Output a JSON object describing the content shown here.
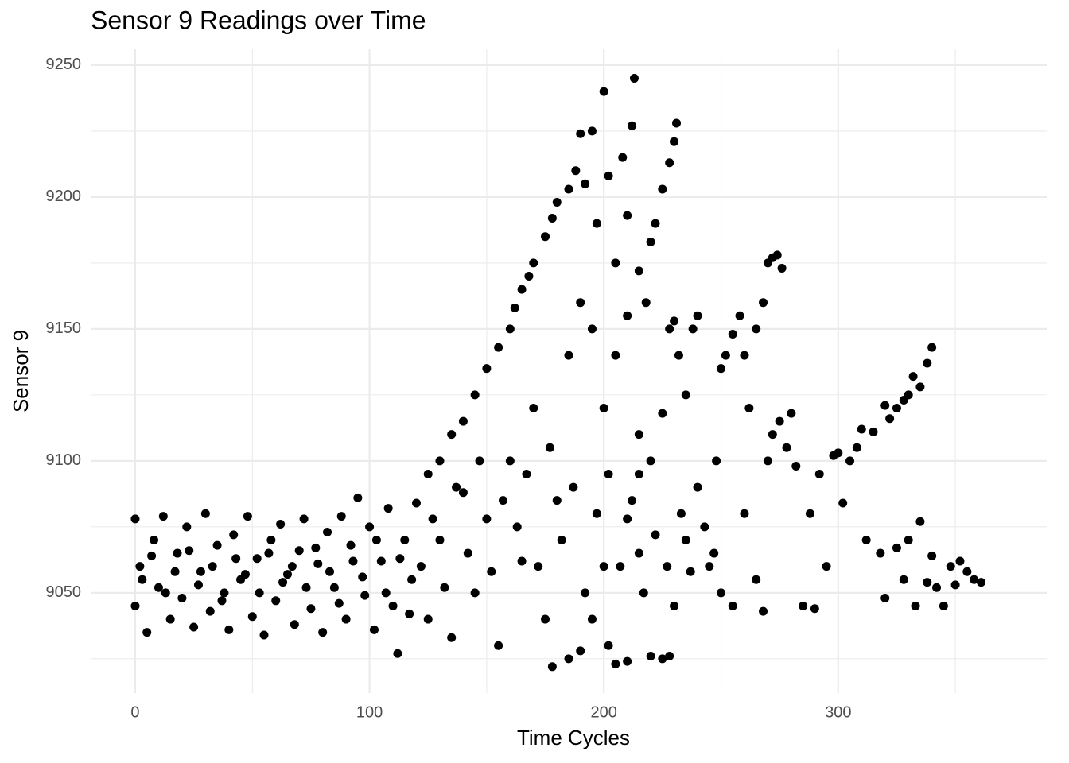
{
  "chart_data": {
    "type": "scatter",
    "title": "Sensor 9 Readings over Time",
    "x_label": "Time Cycles",
    "y_label": "Sensor 9",
    "color": "#000000",
    "grid": true,
    "xlim": [
      -19,
      389
    ],
    "ylim": [
      9012,
      9256
    ],
    "xticks": [
      0,
      100,
      200,
      300
    ],
    "yticks": [
      9050,
      9100,
      9150,
      9200,
      9250
    ],
    "x": [
      0,
      0,
      2,
      5,
      8,
      10,
      12,
      15,
      18,
      20,
      22,
      25,
      28,
      30,
      32,
      35,
      38,
      40,
      42,
      45,
      48,
      50,
      52,
      55,
      58,
      60,
      62,
      65,
      68,
      70,
      72,
      75,
      78,
      80,
      82,
      85,
      88,
      90,
      92,
      95,
      98,
      100,
      102,
      105,
      108,
      110,
      112,
      115,
      118,
      120,
      125,
      130,
      135,
      140,
      145,
      150,
      155,
      160,
      162,
      165,
      168,
      170,
      175,
      178,
      180,
      125,
      130,
      135,
      140,
      145,
      150,
      155,
      160,
      165,
      170,
      175,
      178,
      180,
      185,
      188,
      190,
      192,
      195,
      197,
      200,
      202,
      205,
      208,
      210,
      212,
      213,
      215,
      218,
      220,
      222,
      225,
      228,
      230,
      231,
      185,
      190,
      195,
      200,
      205,
      210,
      215,
      185,
      190,
      195,
      200,
      202,
      205,
      210,
      215,
      220,
      225,
      228,
      210,
      215,
      220,
      225,
      228,
      230,
      232,
      235,
      238,
      240,
      230,
      235,
      240,
      245,
      248,
      250,
      252,
      255,
      258,
      260,
      262,
      265,
      268,
      270,
      272,
      274,
      276,
      250,
      255,
      260,
      265,
      268,
      270,
      272,
      275,
      278,
      280,
      282,
      285,
      288,
      290,
      292,
      295,
      298,
      300,
      302,
      305,
      308,
      310,
      312,
      315,
      318,
      320,
      322,
      325,
      328,
      330,
      332,
      335,
      338,
      340,
      320,
      325,
      328,
      330,
      333,
      335,
      338,
      340,
      342,
      345,
      348,
      350,
      352,
      355,
      358,
      361,
      3,
      7,
      13,
      17,
      23,
      27,
      33,
      37,
      43,
      47,
      53,
      57,
      63,
      67,
      73,
      77,
      83,
      87,
      93,
      97,
      103,
      107,
      113,
      117,
      122,
      127,
      132,
      137,
      142,
      147,
      152,
      157,
      163,
      167,
      172,
      177,
      182,
      187,
      192,
      197,
      202,
      207,
      212,
      217,
      222,
      227,
      233,
      237,
      243,
      247
    ],
    "values": [
      9045,
      9078,
      9060,
      9035,
      9070,
      9052,
      9079,
      9040,
      9065,
      9048,
      9075,
      9037,
      9058,
      9080,
      9043,
      9068,
      9050,
      9036,
      9072,
      9055,
      9079,
      9041,
      9063,
      9034,
      9070,
      9047,
      9076,
      9057,
      9038,
      9066,
      9078,
      9044,
      9061,
      9035,
      9073,
      9052,
      9079,
      9040,
      9068,
      9086,
      9049,
      9075,
      9036,
      9062,
      9082,
      9045,
      9027,
      9070,
      9055,
      9084,
      9095,
      9100,
      9110,
      9115,
      9125,
      9135,
      9143,
      9150,
      9158,
      9165,
      9170,
      9175,
      9185,
      9192,
      9198,
      9040,
      9070,
      9033,
      9088,
      9050,
      9078,
      9030,
      9100,
      9062,
      9120,
      9040,
      9022,
      9085,
      9203,
      9210,
      9224,
      9205,
      9225,
      9190,
      9240,
      9208,
      9175,
      9215,
      9193,
      9227,
      9245,
      9172,
      9160,
      9183,
      9190,
      9203,
      9213,
      9221,
      9228,
      9140,
      9160,
      9150,
      9120,
      9140,
      9155,
      9110,
      9025,
      9028,
      9040,
      9060,
      9030,
      9023,
      9024,
      9095,
      9026,
      9025,
      9026,
      9078,
      9065,
      9100,
      9118,
      9150,
      9153,
      9140,
      9125,
      9150,
      9155,
      9045,
      9070,
      9090,
      9060,
      9100,
      9135,
      9140,
      9148,
      9155,
      9140,
      9120,
      9150,
      9160,
      9175,
      9177,
      9178,
      9173,
      9050,
      9045,
      9080,
      9055,
      9043,
      9100,
      9110,
      9115,
      9105,
      9118,
      9098,
      9045,
      9080,
      9044,
      9095,
      9060,
      9102,
      9103,
      9084,
      9100,
      9105,
      9112,
      9070,
      9111,
      9065,
      9121,
      9116,
      9120,
      9123,
      9125,
      9132,
      9128,
      9137,
      9143,
      9048,
      9067,
      9055,
      9070,
      9045,
      9077,
      9054,
      9064,
      9052,
      9045,
      9060,
      9053,
      9062,
      9058,
      9055,
      9054,
      9055,
      9064,
      9050,
      9058,
      9066,
      9053,
      9060,
      9047,
      9063,
      9057,
      9050,
      9065,
      9054,
      9060,
      9052,
      9067,
      9058,
      9046,
      9062,
      9056,
      9070,
      9050,
      9063,
      9042,
      9060,
      9078,
      9052,
      9090,
      9065,
      9100,
      9058,
      9085,
      9075,
      9095,
      9060,
      9105,
      9070,
      9090,
      9050,
      9080,
      9095,
      9060,
      9085,
      9050,
      9072,
      9060,
      9080,
      9058,
      9075,
      9065
    ]
  }
}
